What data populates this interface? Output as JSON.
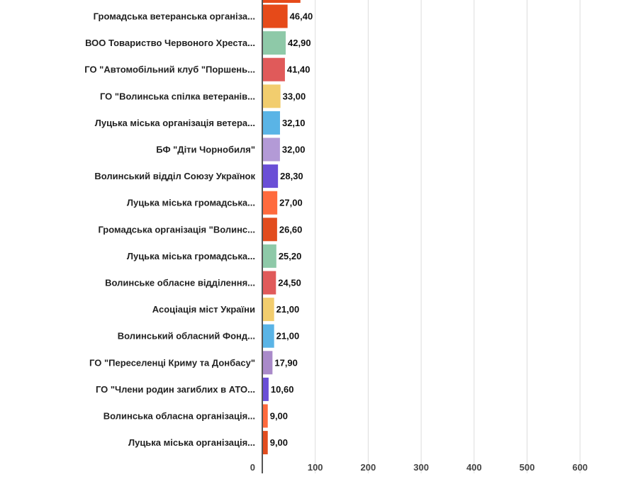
{
  "chart_data": {
    "type": "bar",
    "orientation": "horizontal",
    "title": "",
    "xlabel": "",
    "ylabel": "",
    "xlim": [
      0,
      600
    ],
    "x_ticks": [
      "0",
      "100",
      "200",
      "300",
      "400",
      "500",
      "600"
    ],
    "grid": true,
    "top_partial_bar": {
      "value": 72,
      "color": "#e64a19"
    },
    "categories": [
      "Громадська ветеранська організа...",
      "ВОО Товариство Червоного Хреста...",
      "ГО \"Автомобільний клуб \"Поршень...",
      "ГО \"Волинська спілка ветеранів...",
      "Луцька міська організація ветера...",
      "БФ \"Діти Чорнобиля\"",
      "Волинський відділ Союзу Українок",
      "Луцька міська громадська...",
      "Громадська організація \"Волинс...",
      "Луцька міська громадська...",
      "Волинське обласне відділення...",
      "Асоціація міст України",
      "Волинський обласний Фонд...",
      "ГО \"Переселенці Криму та Донбасу\"",
      "ГО \"Члени родин загиблих в АТО...",
      "Волинська обласна організація...",
      "Луцька міська організація..."
    ],
    "values": [
      46.4,
      42.9,
      41.4,
      33.0,
      32.1,
      32.0,
      28.3,
      27.0,
      26.6,
      25.2,
      24.5,
      21.0,
      21.0,
      17.9,
      10.6,
      9.0,
      9.0
    ],
    "value_labels": [
      "46,40",
      "42,90",
      "41,40",
      "33,00",
      "32,10",
      "32,00",
      "28,30",
      "27,00",
      "26,60",
      "25,20",
      "24,50",
      "21,00",
      "21,00",
      "17,90",
      "10,60",
      "9,00",
      "9,00"
    ],
    "colors": [
      "#e64a19",
      "#8ec9a8",
      "#e05a5a",
      "#f2cd6e",
      "#5ab4e6",
      "#b39ad6",
      "#6a4fd6",
      "#ff6a3d",
      "#e24c1e",
      "#8ec9a8",
      "#e05a5a",
      "#f2cd6e",
      "#5ab4e6",
      "#a98ac9",
      "#6a4fd6",
      "#ff6a3d",
      "#e24c1e"
    ]
  }
}
